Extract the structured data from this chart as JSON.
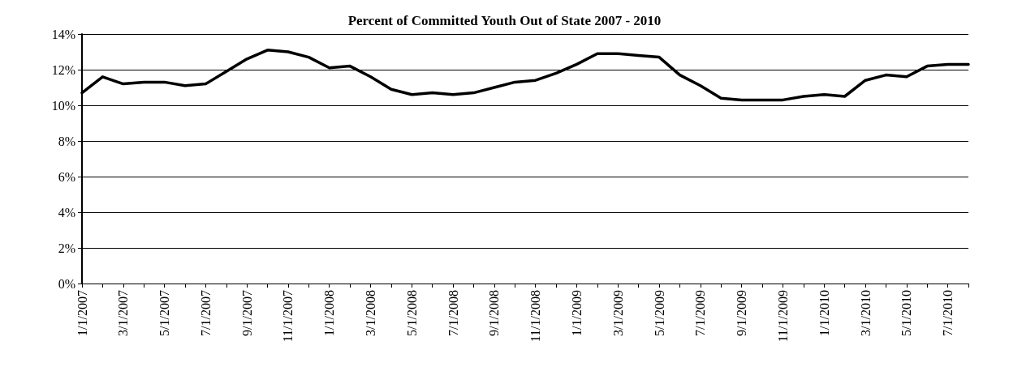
{
  "chart_data": {
    "type": "line",
    "title": "Percent of Committed Youth Out of State 2007 - 2010",
    "categories": [
      "1/1/2007",
      null,
      "3/1/2007",
      null,
      "5/1/2007",
      null,
      "7/1/2007",
      null,
      "9/1/2007",
      null,
      "11/1/2007",
      null,
      "1/1/2008",
      null,
      "3/1/2008",
      null,
      "5/1/2008",
      null,
      "7/1/2008",
      null,
      "9/1/2008",
      null,
      "11/1/2008",
      null,
      "1/1/2009",
      null,
      "3/1/2009",
      null,
      "5/1/2009",
      null,
      "7/1/2009",
      null,
      "9/1/2009",
      null,
      "11/1/2009",
      null,
      "1/1/2010",
      null,
      "3/1/2010",
      null,
      "5/1/2010",
      null,
      "7/1/2010",
      null
    ],
    "series": [
      {
        "color": "#000000",
        "values": [
          10.7,
          11.6,
          11.2,
          11.3,
          11.3,
          11.1,
          11.2,
          11.9,
          12.6,
          13.1,
          13.0,
          12.7,
          12.1,
          12.2,
          11.6,
          10.9,
          10.6,
          10.7,
          10.6,
          10.7,
          11.0,
          11.3,
          11.4,
          11.8,
          12.3,
          12.9,
          12.9,
          12.8,
          12.7,
          11.7,
          11.1,
          10.4,
          10.3,
          10.3,
          10.3,
          10.5,
          10.6,
          10.5,
          11.4,
          11.7,
          11.6,
          12.2,
          12.3,
          12.3
        ]
      }
    ],
    "ylim": [
      0,
      14
    ],
    "yticks": [
      {
        "value": 0,
        "label": "0%"
      },
      {
        "value": 2,
        "label": "2%"
      },
      {
        "value": 4,
        "label": "4%"
      },
      {
        "value": 6,
        "label": "6%"
      },
      {
        "value": 8,
        "label": "8%"
      },
      {
        "value": 10,
        "label": "10%"
      },
      {
        "value": 12,
        "label": "12%"
      },
      {
        "value": 14,
        "label": "14%"
      }
    ],
    "grid": "y",
    "marker": "none",
    "line_style": "solid"
  }
}
